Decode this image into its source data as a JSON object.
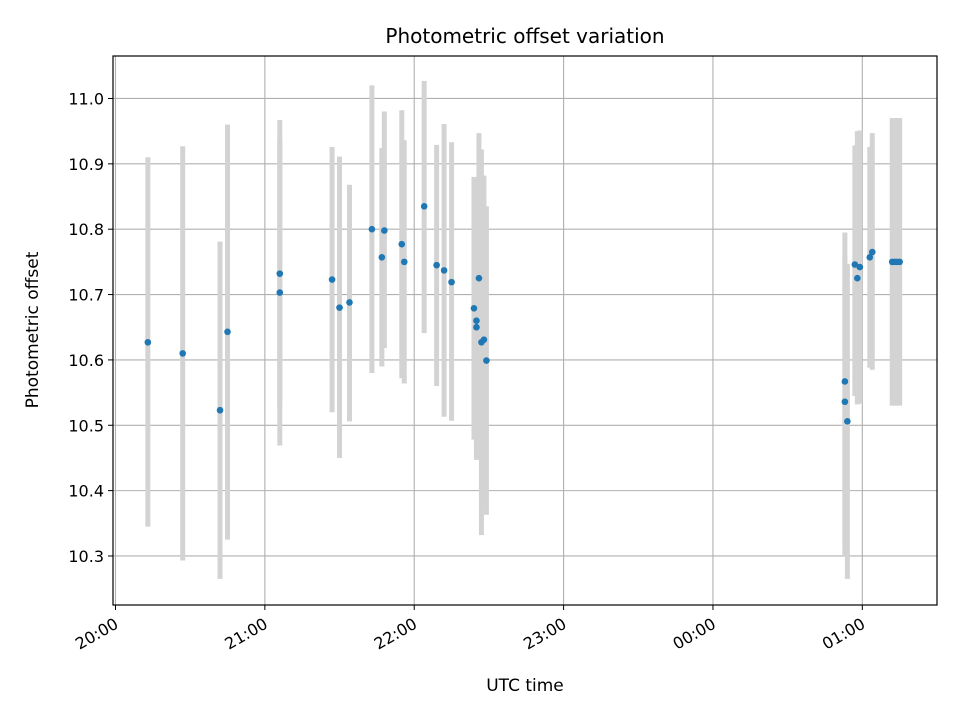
{
  "chart_data": {
    "type": "scatter",
    "title": "Photometric offset variation",
    "xlabel": "UTC time",
    "ylabel": "Photometric offset",
    "x_axis": {
      "kind": "time",
      "range": [
        "19:59",
        "01:30"
      ],
      "ticks": [
        {
          "time": "20:00",
          "label": "20:00"
        },
        {
          "time": "21:00",
          "label": "21:00"
        },
        {
          "time": "22:00",
          "label": "22:00"
        },
        {
          "time": "23:00",
          "label": "23:00"
        },
        {
          "time": "00:00",
          "label": "00:00"
        },
        {
          "time": "01:00",
          "label": "01:00"
        }
      ]
    },
    "y_axis": {
      "range": [
        10.225,
        11.065
      ],
      "ticks": [
        {
          "value": 10.3,
          "label": "10.3"
        },
        {
          "value": 10.4,
          "label": "10.4"
        },
        {
          "value": 10.5,
          "label": "10.5"
        },
        {
          "value": 10.6,
          "label": "10.6"
        },
        {
          "value": 10.7,
          "label": "10.7"
        },
        {
          "value": 10.8,
          "label": "10.8"
        },
        {
          "value": 10.9,
          "label": "10.9"
        },
        {
          "value": 11.0,
          "label": "11.0"
        }
      ]
    },
    "grid": true,
    "colors": {
      "point": "#1f77b4",
      "errorbar": "#d3d3d3",
      "grid": "#b0b0b0"
    },
    "points": [
      {
        "time": "20:13",
        "y": 10.627,
        "low": 10.345,
        "high": 10.91
      },
      {
        "time": "20:27",
        "y": 10.61,
        "low": 10.293,
        "high": 10.927
      },
      {
        "time": "20:42",
        "y": 10.523,
        "low": 10.265,
        "high": 10.781
      },
      {
        "time": "20:45",
        "y": 10.643,
        "low": 10.325,
        "high": 10.96
      },
      {
        "time": "21:06",
        "y": 10.732,
        "low": 10.53,
        "high": 10.967
      },
      {
        "time": "21:06",
        "y": 10.703,
        "low": 10.469,
        "high": 10.937
      },
      {
        "time": "21:27",
        "y": 10.723,
        "low": 10.52,
        "high": 10.926
      },
      {
        "time": "21:30",
        "y": 10.68,
        "low": 10.45,
        "high": 10.911
      },
      {
        "time": "21:34",
        "y": 10.688,
        "low": 10.506,
        "high": 10.868
      },
      {
        "time": "21:43",
        "y": 10.8,
        "low": 10.58,
        "high": 11.02
      },
      {
        "time": "21:47",
        "y": 10.757,
        "low": 10.59,
        "high": 10.924
      },
      {
        "time": "21:48",
        "y": 10.798,
        "low": 10.618,
        "high": 10.98
      },
      {
        "time": "21:55",
        "y": 10.777,
        "low": 10.572,
        "high": 10.982
      },
      {
        "time": "21:56",
        "y": 10.75,
        "low": 10.564,
        "high": 10.936
      },
      {
        "time": "22:04",
        "y": 10.835,
        "low": 10.641,
        "high": 11.027
      },
      {
        "time": "22:09",
        "y": 10.745,
        "low": 10.56,
        "high": 10.929
      },
      {
        "time": "22:12",
        "y": 10.737,
        "low": 10.513,
        "high": 10.961
      },
      {
        "time": "22:15",
        "y": 10.719,
        "low": 10.507,
        "high": 10.933
      },
      {
        "time": "22:24",
        "y": 10.679,
        "low": 10.478,
        "high": 10.88
      },
      {
        "time": "22:25",
        "y": 10.65,
        "low": 10.447,
        "high": 10.875
      },
      {
        "time": "22:25",
        "y": 10.66,
        "low": 10.465,
        "high": 10.862
      },
      {
        "time": "22:26",
        "y": 10.725,
        "low": 10.503,
        "high": 10.947
      },
      {
        "time": "22:27",
        "y": 10.627,
        "low": 10.332,
        "high": 10.922
      },
      {
        "time": "22:28",
        "y": 10.631,
        "low": 10.38,
        "high": 10.882
      },
      {
        "time": "22:29",
        "y": 10.599,
        "low": 10.363,
        "high": 10.835
      },
      {
        "time": "00:53",
        "y": 10.567,
        "low": 10.318,
        "high": 10.795
      },
      {
        "time": "00:53",
        "y": 10.536,
        "low": 10.3,
        "high": 10.76
      },
      {
        "time": "00:54",
        "y": 10.506,
        "low": 10.265,
        "high": 10.747
      },
      {
        "time": "00:57",
        "y": 10.746,
        "low": 10.545,
        "high": 10.928
      },
      {
        "time": "00:58",
        "y": 10.725,
        "low": 10.532,
        "high": 10.95
      },
      {
        "time": "00:59",
        "y": 10.742,
        "low": 10.533,
        "high": 10.951
      },
      {
        "time": "01:03",
        "y": 10.757,
        "low": 10.588,
        "high": 10.926
      },
      {
        "time": "01:04",
        "y": 10.765,
        "low": 10.585,
        "high": 10.947
      },
      {
        "time": "01:12",
        "y": 10.75,
        "low": 10.53,
        "high": 10.97
      },
      {
        "time": "01:13",
        "y": 10.75,
        "low": 10.53,
        "high": 10.97
      },
      {
        "time": "01:14",
        "y": 10.75,
        "low": 10.53,
        "high": 10.97
      },
      {
        "time": "01:15",
        "y": 10.75,
        "low": 10.53,
        "high": 10.97
      }
    ]
  }
}
